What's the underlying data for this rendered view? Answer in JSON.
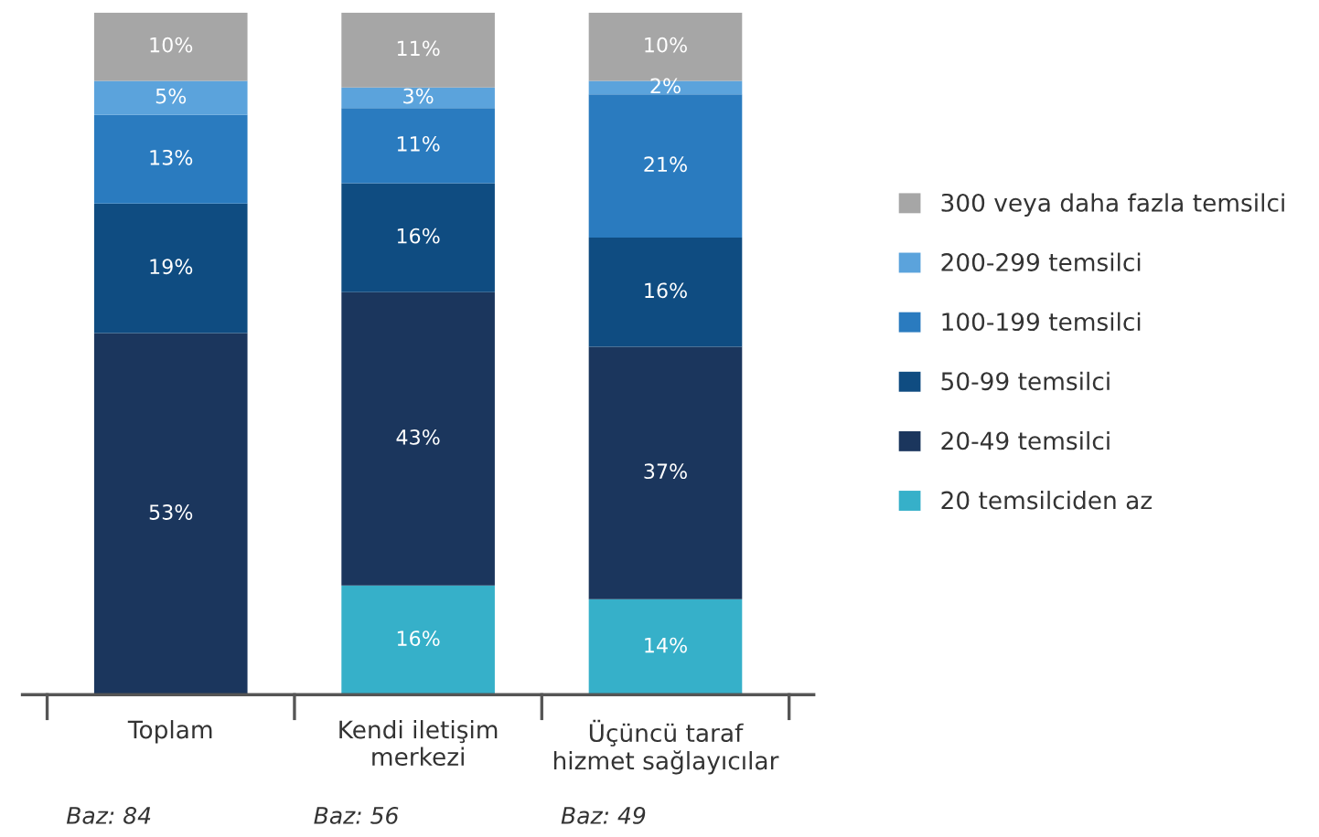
{
  "chart_data": {
    "type": "bar",
    "stacked": true,
    "categories": [
      "Toplam",
      "Kendi iletişim\nmerkezi",
      "Üçüncü taraf\nhizmet sağlayıcılar"
    ],
    "ylim": [
      0,
      100
    ],
    "tick_labels": "x",
    "legend": "right",
    "grid": false,
    "series": [
      {
        "name": "20 temsilciden az",
        "color": "#36b0c9",
        "values": [
          null,
          16,
          14
        ],
        "value_labels": [
          null,
          "16%",
          "14%"
        ]
      },
      {
        "name": "20-49 temsilci",
        "color": "#1b365d",
        "values": [
          53,
          43,
          37
        ],
        "value_labels": [
          "53%",
          "43%",
          "37%"
        ]
      },
      {
        "name": "50-99 temsilci",
        "color": "#0f4c81",
        "values": [
          19,
          16,
          16
        ],
        "value_labels": [
          "19%",
          "16%",
          "16%"
        ]
      },
      {
        "name": "100-199 temsilci",
        "color": "#2a7bbf",
        "values": [
          13,
          11,
          21
        ],
        "value_labels": [
          "13%",
          "11%",
          "21%"
        ]
      },
      {
        "name": "200-299 temsilci",
        "color": "#5ba3dc",
        "values": [
          5,
          3,
          2
        ],
        "value_labels": [
          "5%",
          "3%",
          "2%"
        ]
      },
      {
        "name": "300 veya daha fazla temsilci",
        "color": "#a6a6a6",
        "values": [
          10,
          11,
          10
        ],
        "value_labels": [
          "10%",
          "11%",
          "10%"
        ]
      }
    ],
    "annotations": [
      "Baz: 84",
      "Baz: 56",
      "Baz: 49"
    ]
  }
}
